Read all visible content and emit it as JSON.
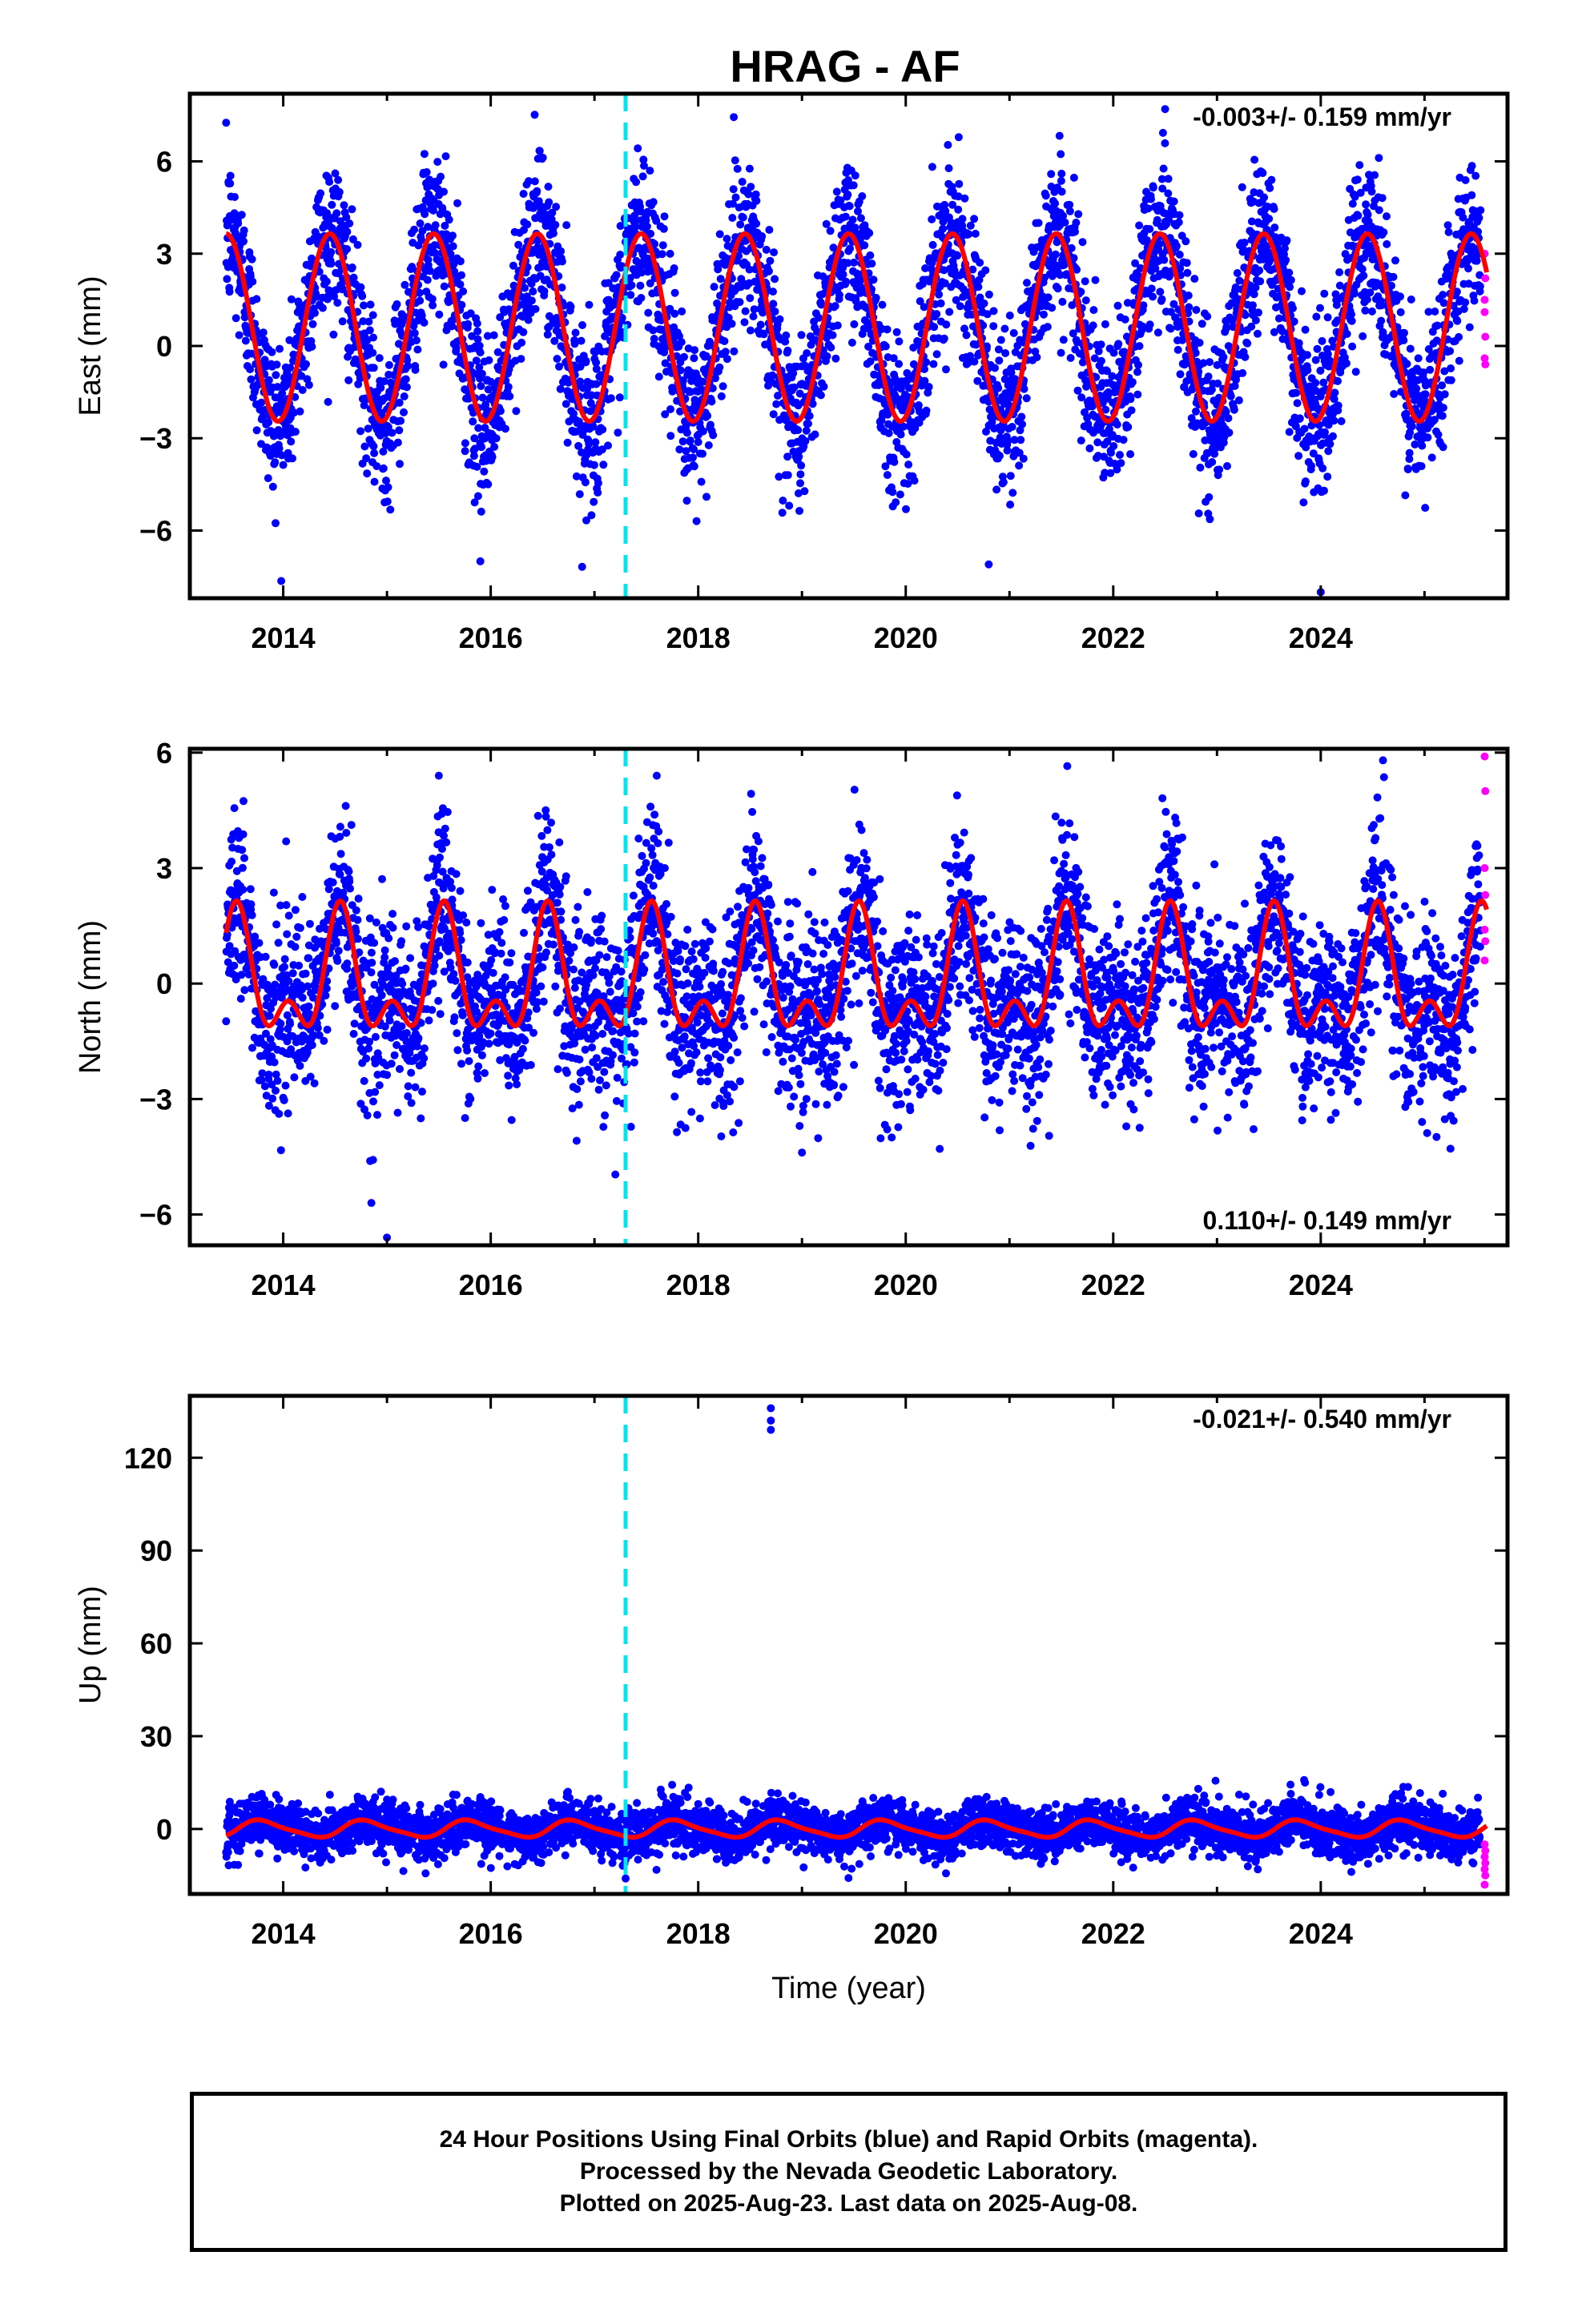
{
  "chart_data": {
    "title": "HRAG - AF",
    "type": "scatter",
    "xlabel": "Time (year)",
    "x_ticks": [
      "2014",
      "2016",
      "2018",
      "2020",
      "2022",
      "2024"
    ],
    "xlim": [
      2013.1,
      2025.8
    ],
    "event_line_year": 2017.3,
    "data_span": [
      2013.45,
      2025.6
    ],
    "rapid_span": [
      2025.4,
      2025.6
    ],
    "colors": {
      "final": "#0000ff",
      "rapid": "#ff00ff",
      "model": "#ff0000",
      "event": "#00e5ee"
    },
    "panels": [
      {
        "component": "East",
        "ylabel": "East (mm)",
        "ylim": [
          -8.2,
          8.2
        ],
        "y_ticks": [
          6,
          3,
          0,
          -3,
          -6
        ],
        "y_tick_labels": [
          "6",
          "3",
          "0",
          "−3",
          "−6"
        ],
        "rate_text": "-0.003+/- 0.159 mm/yr",
        "rate_position": "top-right",
        "model": {
          "offset": 0.6,
          "annual_amp": 3.05,
          "annual_phase_year": 0.45,
          "semiannual_amp": 0.0,
          "semiannual_phase_year": 0.0
        },
        "scatter_sd": 1.3,
        "outliers": [
          {
            "x": 2022.5,
            "y": 7.7
          },
          {
            "x": 2024.0,
            "y": -8.0
          },
          {
            "x": 2020.8,
            "y": -7.1
          },
          {
            "x": 2015.9,
            "y": -7.0
          }
        ],
        "rapid_values": [
          3.0,
          2.2,
          1.5,
          0.3,
          -0.4,
          -0.6,
          1.1
        ]
      },
      {
        "component": "North",
        "ylabel": "North (mm)",
        "ylim": [
          -6.8,
          6.1
        ],
        "y_ticks": [
          6,
          3,
          0,
          -3,
          -6
        ],
        "y_tick_labels": [
          "6",
          "3",
          "0",
          "−3",
          "−6"
        ],
        "rate_text": "0.110+/- 0.149 mm/yr",
        "rate_position": "bottom-right",
        "model": {
          "offset": 0.0,
          "annual_amp": 1.3,
          "annual_phase_year": 0.55,
          "semiannual_amp": 0.85,
          "semiannual_phase_year": 0.05
        },
        "scatter_sd": 1.15,
        "outliers": [
          {
            "x": 2015.5,
            "y": 5.4
          },
          {
            "x": 2017.6,
            "y": 5.4
          },
          {
            "x": 2015.0,
            "y": -6.6
          },
          {
            "x": 2014.85,
            "y": -5.7
          },
          {
            "x": 2024.6,
            "y": 5.8
          }
        ],
        "rapid_values": [
          5.9,
          5.0,
          3.0,
          2.3,
          1.4,
          1.1,
          0.6
        ]
      },
      {
        "component": "Up",
        "ylabel": "Up (mm)",
        "ylim": [
          -21,
          140
        ],
        "y_ticks": [
          120,
          90,
          60,
          30,
          0
        ],
        "y_tick_labels": [
          "120",
          "90",
          "60",
          "30",
          "0"
        ],
        "rate_text": "-0.021+/- 0.540 mm/yr",
        "rate_position": "top-right",
        "model": {
          "offset": 0.0,
          "annual_amp": 2.6,
          "annual_phase_year": 0.8,
          "semiannual_amp": 0.6,
          "semiannual_phase_year": 0.2
        },
        "scatter_sd": 4.0,
        "outliers": [
          {
            "x": 2018.7,
            "y": 136
          },
          {
            "x": 2018.7,
            "y": 132
          },
          {
            "x": 2018.7,
            "y": 129
          },
          {
            "x": 2017.3,
            "y": -16
          }
        ],
        "rapid_values": [
          -5,
          -7,
          -9,
          -11,
          -13,
          -15,
          -18
        ]
      }
    ]
  },
  "footer": {
    "line1": "24 Hour Positions Using Final Orbits (blue) and Rapid Orbits (magenta).",
    "line2": "Processed by the Nevada Geodetic Laboratory.",
    "line3": "Plotted on 2025-Aug-23. Last data on 2025-Aug-08."
  }
}
